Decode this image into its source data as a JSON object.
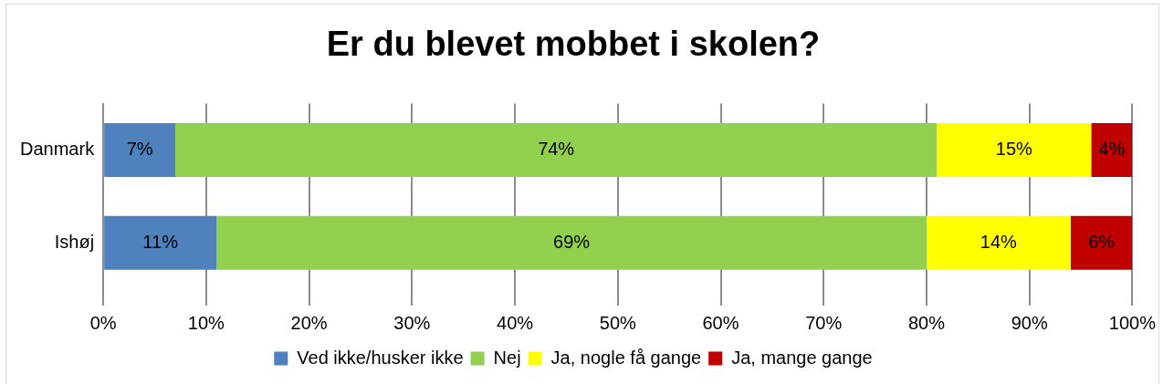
{
  "chart_data": {
    "type": "bar",
    "title": "Er du blevet mobbet i skolen?",
    "orientation": "horizontal",
    "stacked": true,
    "categories": [
      "Danmark",
      "Ishøj"
    ],
    "series": [
      {
        "name": "Ved ikke/husker ikke",
        "color": "#4f81bd",
        "values": [
          7,
          11
        ],
        "value_labels": [
          "7%",
          "11%"
        ]
      },
      {
        "name": "Nej",
        "color": "#92d050",
        "values": [
          74,
          69
        ],
        "value_labels": [
          "74%",
          "69%"
        ]
      },
      {
        "name": "Ja, nogle få gange",
        "color": "#ffff00",
        "values": [
          15,
          14
        ],
        "value_labels": [
          "15%",
          "14%"
        ]
      },
      {
        "name": "Ja, mange gange",
        "color": "#c00000",
        "values": [
          4,
          6
        ],
        "value_labels": [
          "4%",
          "6%"
        ]
      }
    ],
    "xlim": [
      0,
      100
    ],
    "xticks": [
      {
        "value": 0,
        "label": "0%"
      },
      {
        "value": 10,
        "label": "10%"
      },
      {
        "value": 20,
        "label": "20%"
      },
      {
        "value": 30,
        "label": "30%"
      },
      {
        "value": 40,
        "label": "40%"
      },
      {
        "value": 50,
        "label": "50%"
      },
      {
        "value": 60,
        "label": "60%"
      },
      {
        "value": 70,
        "label": "70%"
      },
      {
        "value": 80,
        "label": "80%"
      },
      {
        "value": 90,
        "label": "90%"
      },
      {
        "value": 100,
        "label": "100%"
      }
    ],
    "grid": "x",
    "legend": "bottom"
  }
}
